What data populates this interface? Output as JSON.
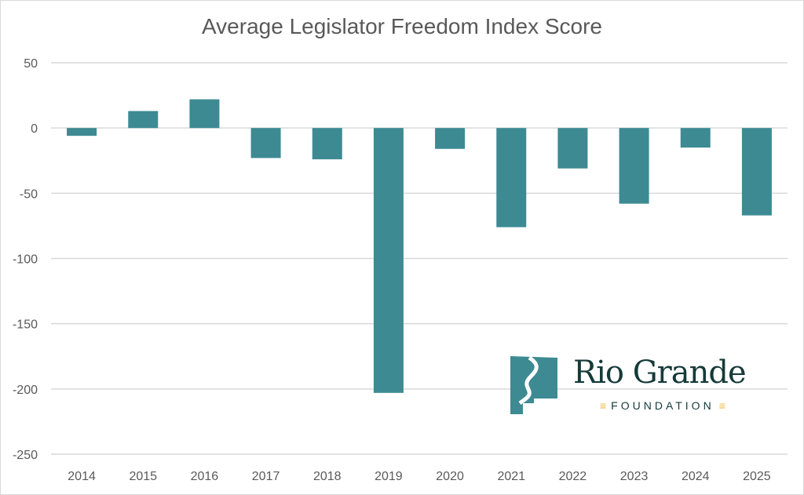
{
  "chart_data": {
    "type": "bar",
    "title": "Average Legislator Freedom Index Score",
    "categories": [
      "2014",
      "2015",
      "2016",
      "2017",
      "2018",
      "2019",
      "2020",
      "2021",
      "2022",
      "2023",
      "2024",
      "2025"
    ],
    "values": [
      -6,
      13,
      22,
      -23,
      -24,
      -203,
      -16,
      -76,
      -31,
      -58,
      -15,
      -67
    ],
    "xlabel": "",
    "ylabel": "",
    "ylim": [
      -250,
      50
    ],
    "yticks": [
      50,
      0,
      -50,
      -100,
      -150,
      -200,
      -250
    ],
    "grid": true,
    "bar_color": "#3d8a93"
  },
  "logo": {
    "name": "Rio Grande",
    "sub": "FOUNDATION"
  }
}
